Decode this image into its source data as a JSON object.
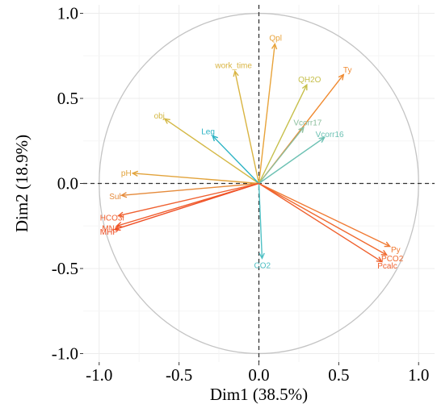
{
  "chart_data": {
    "type": "scatter",
    "subtype": "pca-correlation-circle",
    "xlabel": "Dim1 (38.5%)",
    "ylabel": "Dim2 (18.9%)",
    "xlim": [
      -1.1,
      1.1
    ],
    "ylim": [
      -1.05,
      1.05
    ],
    "xticks": [
      -1.0,
      -0.5,
      0.0,
      0.5,
      1.0
    ],
    "xtick_labels": [
      "-1.0",
      "-0.5",
      "0.0",
      "0.5",
      "1.0"
    ],
    "yticks": [
      -1.0,
      -0.5,
      0.0,
      0.5,
      1.0
    ],
    "ytick_labels": [
      "-1.0",
      "-0.5",
      "0.0",
      "0.5",
      "1.0"
    ],
    "grid": true,
    "unit_circle": true,
    "variables": [
      {
        "name": "Qpl",
        "x": 0.1,
        "y": 0.82,
        "color": "#e8a33a"
      },
      {
        "name": "work_time",
        "x": -0.15,
        "y": 0.66,
        "color": "#d9b441"
      },
      {
        "name": "Ty",
        "x": 0.53,
        "y": 0.64,
        "color": "#f08a30"
      },
      {
        "name": "QH2O",
        "x": 0.3,
        "y": 0.58,
        "color": "#c6bf4a"
      },
      {
        "name": "obj",
        "x": -0.59,
        "y": 0.38,
        "color": "#d4b845"
      },
      {
        "name": "Vcorr17",
        "x": 0.28,
        "y": 0.33,
        "color": "#8cbf9e"
      },
      {
        "name": "Leg",
        "x": -0.29,
        "y": 0.28,
        "color": "#2bb3c4"
      },
      {
        "name": "Vcorr16",
        "x": 0.41,
        "y": 0.27,
        "color": "#6cc1b3"
      },
      {
        "name": "pH",
        "x": -0.79,
        "y": 0.06,
        "color": "#e2a33b"
      },
      {
        "name": "Sul",
        "x": -0.86,
        "y": -0.07,
        "color": "#e58a3a"
      },
      {
        "name": "HCO3l",
        "x": -0.88,
        "y": -0.19,
        "color": "#ef6030"
      },
      {
        "name": "MNo",
        "x": -0.89,
        "y": -0.25,
        "color": "#f05a2a"
      },
      {
        "name": "MHP",
        "x": -0.9,
        "y": -0.27,
        "color": "#ef4f25"
      },
      {
        "name": "CO2",
        "x": 0.02,
        "y": -0.44,
        "color": "#4fc0c4"
      },
      {
        "name": "Py",
        "x": 0.82,
        "y": -0.37,
        "color": "#f07a33"
      },
      {
        "name": "PCO2",
        "x": 0.8,
        "y": -0.42,
        "color": "#f06a30"
      },
      {
        "name": "Pcalc",
        "x": 0.77,
        "y": -0.46,
        "color": "#ef5f2c"
      }
    ]
  }
}
